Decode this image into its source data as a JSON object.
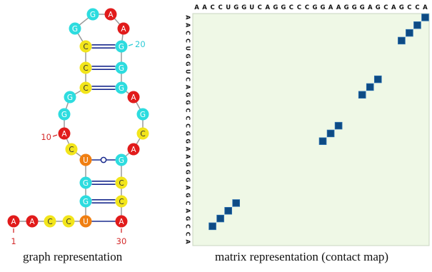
{
  "colors": {
    "A": "#e11b1b",
    "C": "#f2e51b",
    "G": "#2ddcdf",
    "U": "#f07f12",
    "bond": "#1a2b8e",
    "pos_label_red": "#d42a2a",
    "pos_label_cyan": "#2ccbd6",
    "matrix_bg": "#eff8e6",
    "matrix_cell": "#0e4b84",
    "matrix_cell_edge": "#2a6fb0"
  },
  "sequence": "AACCUGGUCAGGCCCGGAAGGGAGCAGCCA",
  "graph": {
    "nodes": [
      "A",
      "A",
      "C",
      "C",
      "U",
      "G",
      "G",
      "U",
      "C",
      "A",
      "G",
      "G",
      "C",
      "C",
      "C",
      "G",
      "G",
      "A",
      "A",
      "G",
      "G",
      "G",
      "A",
      "G",
      "C",
      "A",
      "G",
      "C",
      "C",
      "A"
    ],
    "position_labels": [
      {
        "index": 1,
        "text": "1",
        "color": "pos_label_red"
      },
      {
        "index": 10,
        "text": "10",
        "color": "pos_label_red"
      },
      {
        "index": 20,
        "text": "20",
        "color": "pos_label_cyan"
      },
      {
        "index": 30,
        "text": "30",
        "color": "pos_label_red"
      }
    ],
    "base_pairs": [
      {
        "i": 5,
        "j": 30,
        "type": "single"
      },
      {
        "i": 6,
        "j": 29,
        "type": "double"
      },
      {
        "i": 7,
        "j": 28,
        "type": "double"
      },
      {
        "i": 8,
        "j": 27,
        "type": "wobble"
      },
      {
        "i": 13,
        "j": 22,
        "type": "double"
      },
      {
        "i": 14,
        "j": 21,
        "type": "double"
      },
      {
        "i": 15,
        "j": 20,
        "type": "double"
      }
    ]
  },
  "matrix": {
    "row_sequence": "AACCUGGUCAGGCCCGGAAGGGAGCAGCCA",
    "col_sequence": "AACCUGGUCAGGCCCGGAAGGGAGCAGCCA",
    "contacts": [
      [
        1,
        30
      ],
      [
        2,
        29
      ],
      [
        3,
        28
      ],
      [
        4,
        27
      ],
      [
        9,
        24
      ],
      [
        10,
        23
      ],
      [
        11,
        22
      ],
      [
        15,
        19
      ],
      [
        16,
        18
      ],
      [
        17,
        17
      ],
      [
        25,
        6
      ],
      [
        26,
        5
      ],
      [
        27,
        4
      ],
      [
        28,
        3
      ]
    ]
  },
  "captions": {
    "graph": "graph representation",
    "matrix": "matrix representation (contact map)"
  }
}
